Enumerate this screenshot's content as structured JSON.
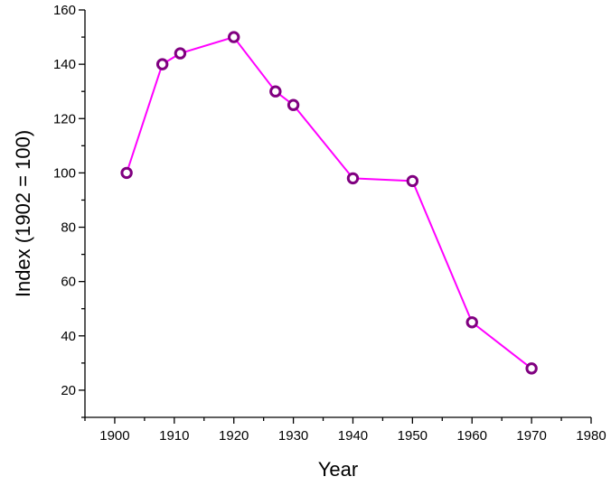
{
  "chart_data": {
    "type": "line",
    "title": "",
    "xlabel": "Year",
    "ylabel": "Index (1902 = 100)",
    "xlim": [
      1895,
      1980
    ],
    "ylim": [
      10,
      160
    ],
    "x_ticks": [
      1900,
      1910,
      1920,
      1930,
      1940,
      1950,
      1960,
      1970,
      1980
    ],
    "y_ticks": [
      20,
      40,
      60,
      80,
      100,
      120,
      140,
      160
    ],
    "grid": false,
    "legend": "none",
    "series": [
      {
        "line_color": "#ff00ff",
        "marker_color": "#800080",
        "marker": "open-circle",
        "x": [
          1902,
          1908,
          1911,
          1920,
          1927,
          1930,
          1940,
          1950,
          1960,
          1970
        ],
        "y": [
          100,
          140,
          144,
          150,
          130,
          125,
          98,
          97,
          45,
          28
        ]
      }
    ]
  }
}
